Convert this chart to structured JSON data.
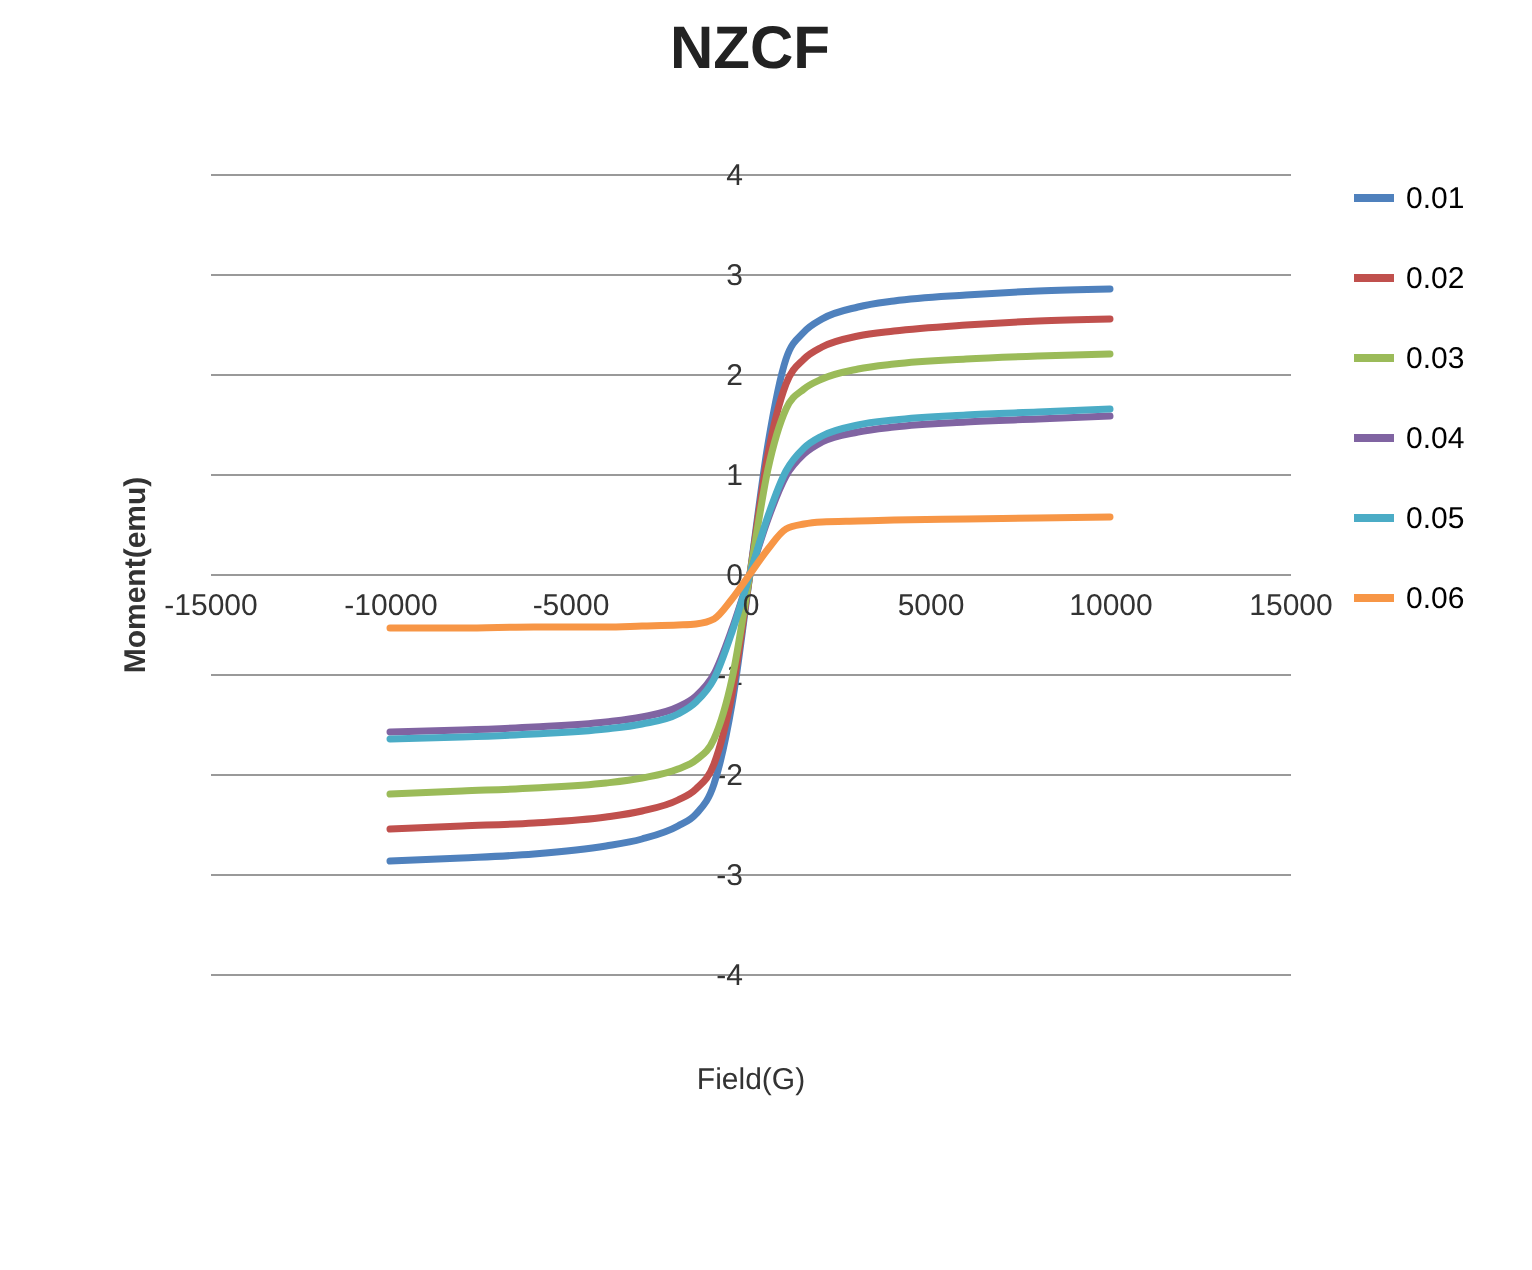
{
  "chart_data": {
    "type": "line",
    "title": "NZCF",
    "xlabel": "Field(G)",
    "ylabel": "Moment(emu)",
    "x": [
      -10000,
      -8000,
      -6000,
      -4000,
      -3000,
      -2000,
      -1500,
      -1000,
      -500,
      0,
      500,
      1000,
      1500,
      2000,
      3000,
      4000,
      6000,
      8000,
      10000
    ],
    "series": [
      {
        "name": "0.01",
        "color": "#4f81bd",
        "values": [
          -2.87,
          -2.84,
          -2.8,
          -2.72,
          -2.65,
          -2.52,
          -2.4,
          -2.1,
          -1.3,
          0,
          1.3,
          2.15,
          2.42,
          2.55,
          2.67,
          2.73,
          2.79,
          2.83,
          2.85
        ]
      },
      {
        "name": "0.02",
        "color": "#c0504d",
        "values": [
          -2.55,
          -2.52,
          -2.49,
          -2.43,
          -2.37,
          -2.26,
          -2.15,
          -1.9,
          -1.2,
          0,
          1.2,
          1.9,
          2.15,
          2.27,
          2.38,
          2.43,
          2.49,
          2.53,
          2.55
        ]
      },
      {
        "name": "0.03",
        "color": "#9bbb59",
        "values": [
          -2.2,
          -2.17,
          -2.14,
          -2.09,
          -2.04,
          -1.95,
          -1.86,
          -1.65,
          -1.05,
          0,
          1.05,
          1.65,
          1.85,
          1.95,
          2.05,
          2.1,
          2.15,
          2.18,
          2.2
        ]
      },
      {
        "name": "0.04",
        "color": "#8064a2",
        "values": [
          -1.58,
          -1.56,
          -1.53,
          -1.48,
          -1.43,
          -1.33,
          -1.22,
          -1.0,
          -0.55,
          0,
          0.55,
          0.98,
          1.2,
          1.32,
          1.42,
          1.47,
          1.52,
          1.55,
          1.58
        ]
      },
      {
        "name": "0.05",
        "color": "#4bacc6",
        "values": [
          -1.65,
          -1.63,
          -1.6,
          -1.55,
          -1.5,
          -1.4,
          -1.28,
          -1.05,
          -0.58,
          0,
          0.58,
          1.03,
          1.26,
          1.38,
          1.49,
          1.54,
          1.59,
          1.62,
          1.65
        ]
      },
      {
        "name": "0.06",
        "color": "#f79646",
        "values": [
          -0.54,
          -0.54,
          -0.53,
          -0.53,
          -0.52,
          -0.51,
          -0.5,
          -0.45,
          -0.25,
          0,
          0.25,
          0.45,
          0.5,
          0.52,
          0.53,
          0.54,
          0.55,
          0.56,
          0.57
        ]
      }
    ],
    "xlim": [
      -15000,
      15000
    ],
    "xticks": [
      -15000,
      -10000,
      -5000,
      0,
      5000,
      10000,
      15000
    ],
    "ylim": [
      -4,
      4
    ],
    "yticks": [
      -4,
      -3,
      -2,
      -1,
      0,
      1,
      2,
      3,
      4
    ],
    "grid": "y",
    "legend": "right"
  }
}
